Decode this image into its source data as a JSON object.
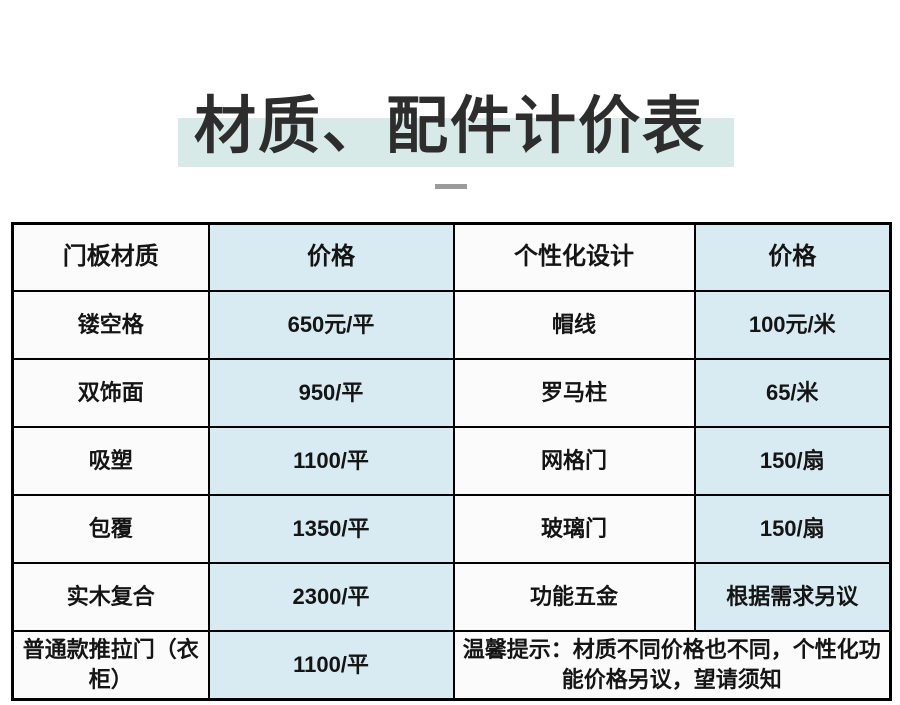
{
  "title": "材质、配件计价表",
  "colors": {
    "title_highlight": "#d8eae7",
    "cell_blue": "#d8ebf2",
    "plain_cell": "#fbfbfb",
    "border": "#000000",
    "title_text": "#2d2d2d",
    "dash_gray": "#9b9b9b"
  },
  "table": {
    "headers": [
      "门板材质",
      "价格",
      "个性化设计",
      "价格"
    ],
    "rows": [
      [
        "镂空格",
        "650元/平",
        "帽线",
        "100元/米"
      ],
      [
        "双饰面",
        "950/平",
        "罗马柱",
        "65/米"
      ],
      [
        "吸塑",
        "1100/平",
        "网格门",
        "150/扇"
      ],
      [
        "包覆",
        "1350/平",
        "玻璃门",
        "150/扇"
      ],
      [
        "实木复合",
        "2300/平",
        "功能五金",
        "根据需求另议"
      ]
    ],
    "note_row": {
      "material": "普通款推拉门（衣柜）",
      "price": "1100/平",
      "note": "温馨提示：材质不同价格也不同，个性化功能价格另议，望请须知"
    }
  },
  "chart_data": {
    "type": "table",
    "title": "材质、配件计价表",
    "columns": [
      "门板材质",
      "价格",
      "个性化设计",
      "价格"
    ],
    "rows": [
      [
        "镂空格",
        "650元/平",
        "帽线",
        "100元/米"
      ],
      [
        "双饰面",
        "950/平",
        "罗马柱",
        "65/米"
      ],
      [
        "吸塑",
        "1100/平",
        "网格门",
        "150/扇"
      ],
      [
        "包覆",
        "1350/平",
        "玻璃门",
        "150/扇"
      ],
      [
        "实木复合",
        "2300/平",
        "功能五金",
        "根据需求另议"
      ],
      [
        "普通款推拉门（衣柜）",
        "1100/平",
        "温馨提示：材质不同价格也不同，个性化功能价格另议，望请须知",
        ""
      ]
    ]
  }
}
